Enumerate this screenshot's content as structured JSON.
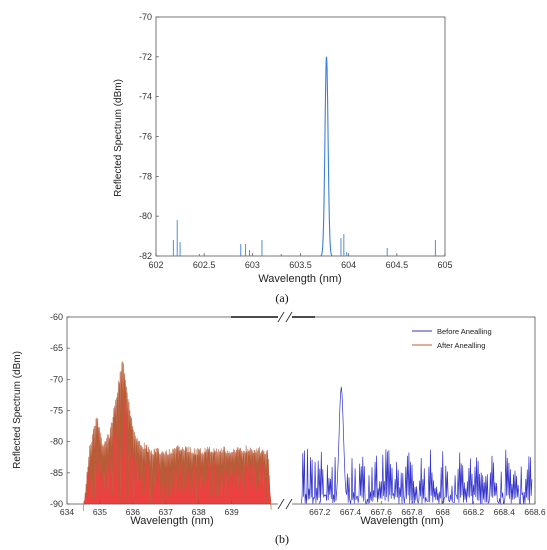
{
  "captions": {
    "a": "(a)",
    "b": "(b)"
  },
  "chart_data": [
    {
      "id": "a",
      "type": "line",
      "xlabel": "Wavelength (nm)",
      "ylabel": "Reflected Spectrum (dBm)",
      "xlim": [
        602,
        605
      ],
      "ylim": [
        -82,
        -70
      ],
      "xticks": [
        "602",
        "602.5",
        "603",
        "603.5",
        "604",
        "604.5",
        "605"
      ],
      "yticks": [
        "-82",
        "-80",
        "-78",
        "-76",
        "-74",
        "-72",
        "-70"
      ],
      "color": "#3d7fd6",
      "peak": {
        "x": 603.77,
        "y": -72.0,
        "width_nm": 0.05
      },
      "spikes": [
        [
          602.18,
          -81.2
        ],
        [
          602.22,
          -80.2
        ],
        [
          602.25,
          -81.3
        ],
        [
          602.45,
          -81.9
        ],
        [
          602.88,
          -81.4
        ],
        [
          602.93,
          -81.4
        ],
        [
          602.97,
          -81.7
        ],
        [
          603.1,
          -81.2
        ],
        [
          603.3,
          -81.9
        ],
        [
          603.92,
          -81.1
        ],
        [
          603.95,
          -80.9
        ],
        [
          603.98,
          -81.8
        ],
        [
          604.4,
          -81.6
        ],
        [
          604.9,
          -81.2
        ]
      ]
    },
    {
      "id": "b",
      "type": "line",
      "xlabel_left": "Wavelength (nm)",
      "xlabel_right": "Wavelength (nm)",
      "ylabel": "Reflected Spectrum (dBm)",
      "ylim": [
        -90,
        -60
      ],
      "yticks": [
        "-90",
        "-85",
        "-80",
        "-75",
        "-70",
        "-65",
        "-60"
      ],
      "left_xlim": [
        634,
        640.5
      ],
      "left_xticks": [
        "634",
        "635",
        "636",
        "637",
        "638",
        "639"
      ],
      "right_xlim": [
        667,
        668.6
      ],
      "right_xticks": [
        "667.2",
        "667.4",
        "667.6",
        "667.8",
        "668",
        "668.2",
        "668.4",
        "668.6"
      ],
      "legend": {
        "position": "top-right"
      },
      "series": [
        {
          "name": "Before Anealling",
          "color": "#3333cc",
          "peak": {
            "x": 667.34,
            "y": -71.2,
            "width_nm": 0.04
          },
          "noise_x_range": [
            667.08,
            668.58
          ],
          "noise_y_range": [
            -90,
            -81
          ]
        },
        {
          "name": "After Anealling",
          "color": "#b85c38",
          "fill_color": "#e82020",
          "envelope": [
            [
              634.5,
              -90
            ],
            [
              634.7,
              -80
            ],
            [
              634.9,
              -75.5
            ],
            [
              635.1,
              -80
            ],
            [
              635.3,
              -78
            ],
            [
              635.5,
              -72
            ],
            [
              635.7,
              -66
            ],
            [
              635.9,
              -74
            ],
            [
              636.1,
              -79
            ],
            [
              636.3,
              -80
            ],
            [
              636.6,
              -81
            ],
            [
              637.0,
              -81
            ],
            [
              637.5,
              -80.5
            ],
            [
              638.0,
              -81
            ],
            [
              638.5,
              -80.5
            ],
            [
              639.0,
              -81
            ],
            [
              639.5,
              -80.5
            ],
            [
              640.1,
              -81
            ],
            [
              640.2,
              -90
            ]
          ]
        }
      ]
    }
  ]
}
